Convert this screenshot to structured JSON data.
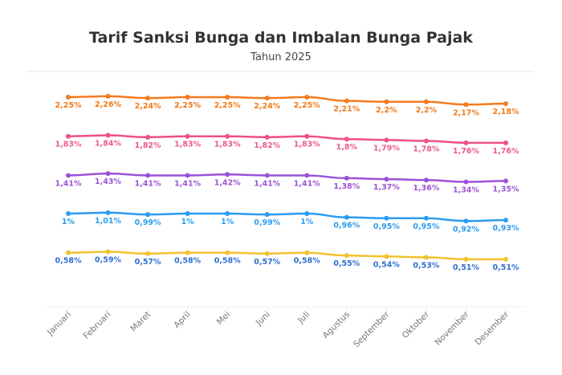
{
  "chart_data": {
    "type": "line",
    "title": "Tarif Sanksi Bunga dan Imbalan Bunga Pajak",
    "subtitle": "Tahun 2025",
    "categories": [
      "Januari",
      "Februari",
      "Maret",
      "April",
      "Mei",
      "Juni",
      "Juli",
      "Agustus",
      "September",
      "Oktober",
      "November",
      "Desember"
    ],
    "ylim": [
      0,
      2.6
    ],
    "grid": false,
    "legend": "none",
    "series": [
      {
        "color": "#f47b20",
        "label_color": "#f07a1a",
        "values": [
          2.25,
          2.26,
          2.24,
          2.25,
          2.25,
          2.24,
          2.25,
          2.21,
          2.2,
          2.2,
          2.17,
          2.18
        ],
        "labels": [
          "2,25%",
          "2,26%",
          "2,24%",
          "2,25%",
          "2,25%",
          "2,24%",
          "2,25%",
          "2,21%",
          "2,2%",
          "2,2%",
          "2,17%",
          "2,18%"
        ]
      },
      {
        "color": "#ef4f87",
        "label_color": "#ec5a8e",
        "values": [
          1.83,
          1.84,
          1.82,
          1.83,
          1.83,
          1.82,
          1.83,
          1.8,
          1.79,
          1.78,
          1.76,
          1.76
        ],
        "labels": [
          "1,83%",
          "1,84%",
          "1,82%",
          "1,83%",
          "1,83%",
          "1,82%",
          "1,83%",
          "1,8%",
          "1,79%",
          "1,78%",
          "1,76%",
          "1,76%"
        ]
      },
      {
        "color": "#9b51d8",
        "label_color": "#9b55d6",
        "values": [
          1.41,
          1.43,
          1.41,
          1.41,
          1.42,
          1.41,
          1.41,
          1.38,
          1.37,
          1.36,
          1.34,
          1.35
        ],
        "labels": [
          "1,41%",
          "1,43%",
          "1,41%",
          "1,41%",
          "1,42%",
          "1,41%",
          "1,41%",
          "1,38%",
          "1,37%",
          "1,36%",
          "1,34%",
          "1,35%"
        ]
      },
      {
        "color": "#2b9cf2",
        "label_color": "#2b9cf0",
        "values": [
          1,
          1.01,
          0.99,
          1,
          1,
          0.99,
          1,
          0.96,
          0.95,
          0.95,
          0.92,
          0.93
        ],
        "labels": [
          "1%",
          "1,01%",
          "0,99%",
          "1%",
          "1%",
          "0,99%",
          "1%",
          "0,96%",
          "0,95%",
          "0,95%",
          "0,92%",
          "0,93%"
        ]
      },
      {
        "color": "#f2c12e",
        "label_color": "#2f6fd0",
        "values": [
          0.58,
          0.59,
          0.57,
          0.58,
          0.58,
          0.57,
          0.58,
          0.55,
          0.54,
          0.53,
          0.51,
          0.51
        ],
        "labels": [
          "0,58%",
          "0,59%",
          "0,57%",
          "0,58%",
          "0,58%",
          "0,57%",
          "0,58%",
          "0,55%",
          "0,54%",
          "0,53%",
          "0,51%",
          "0,51%"
        ]
      }
    ]
  }
}
